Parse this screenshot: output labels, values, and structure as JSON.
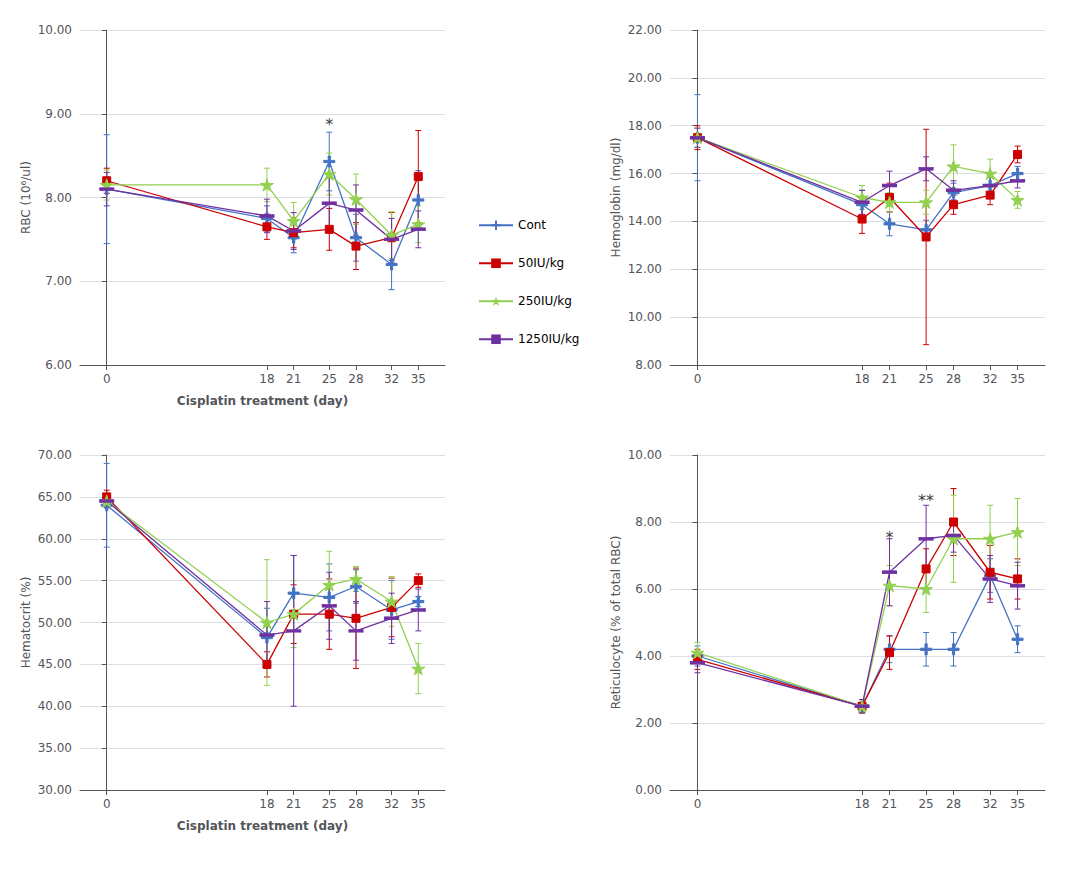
{
  "chart_data": [
    {
      "type": "line",
      "xlabel": "Cisplatin treatment (day)",
      "ylabel": "RBC (10⁶/ul)",
      "x": [
        0,
        18,
        21,
        25,
        28,
        32,
        35
      ],
      "xlim": [
        -3,
        38
      ],
      "xticks": [
        0,
        18,
        21,
        25,
        28,
        32,
        35
      ],
      "ylim": [
        6.0,
        10.0
      ],
      "yticks": [
        {
          "value": 6.0,
          "label": "6.00"
        },
        {
          "value": 7.0,
          "label": "7.00"
        },
        {
          "value": 8.0,
          "label": "8.00"
        },
        {
          "value": 9.0,
          "label": "9.00"
        },
        {
          "value": 10.0,
          "label": "10.00"
        }
      ],
      "grid": true,
      "legend": "right",
      "series": [
        {
          "name": "Cont",
          "color": "#4472C4",
          "marker": "plus",
          "values": [
            8.1,
            7.75,
            7.52,
            8.43,
            7.52,
            7.2,
            7.97
          ],
          "errors": [
            0.65,
            0.15,
            0.18,
            0.35,
            0.28,
            0.3,
            0.35
          ]
        },
        {
          "name": "50IU/kg",
          "color": "#CC0000",
          "marker": "square",
          "values": [
            8.2,
            7.65,
            7.58,
            7.62,
            7.42,
            7.52,
            8.25
          ],
          "errors": [
            0.15,
            0.15,
            0.18,
            0.25,
            0.28,
            0.3,
            0.55
          ]
        },
        {
          "name": "250IU/kg",
          "color": "#92D050",
          "marker": "star",
          "values": [
            8.15,
            8.15,
            7.72,
            8.28,
            7.98,
            7.55,
            7.68
          ],
          "errors": [
            0.18,
            0.2,
            0.22,
            0.25,
            0.3,
            0.28,
            0.22
          ]
        },
        {
          "name": "1250IU/kg",
          "color": "#7030A0",
          "marker": "hline",
          "values": [
            8.1,
            7.78,
            7.6,
            7.93,
            7.85,
            7.5,
            7.62
          ],
          "errors": [
            0.2,
            0.2,
            0.22,
            0.32,
            0.3,
            0.25,
            0.22
          ]
        }
      ],
      "annotations": [
        {
          "text": "*",
          "x": 25,
          "y": 8.78
        }
      ]
    },
    {
      "type": "line",
      "ylabel": "Hemoglobin (mg/dl)",
      "x": [
        0,
        18,
        21,
        25,
        28,
        32,
        35
      ],
      "xlim": [
        -3,
        38
      ],
      "xticks": [
        0,
        18,
        21,
        25,
        28,
        32,
        35
      ],
      "ylim": [
        8.0,
        22.0
      ],
      "yticks": [
        {
          "value": 8.0,
          "label": "8.00"
        },
        {
          "value": 10.0,
          "label": "10.00"
        },
        {
          "value": 12.0,
          "label": "12.00"
        },
        {
          "value": 14.0,
          "label": "14.00"
        },
        {
          "value": 16.0,
          "label": "16.00"
        },
        {
          "value": 18.0,
          "label": "18.00"
        },
        {
          "value": 20.0,
          "label": "20.00"
        },
        {
          "value": 22.0,
          "label": "22.00"
        }
      ],
      "grid": true,
      "series": [
        {
          "name": "Cont",
          "color": "#4472C4",
          "marker": "plus",
          "values": [
            17.5,
            14.7,
            13.9,
            13.65,
            15.2,
            15.5,
            16.0
          ],
          "errors": [
            1.8,
            0.6,
            0.5,
            0.4,
            0.4,
            0.5,
            0.3
          ]
        },
        {
          "name": "50IU/kg",
          "color": "#CC0000",
          "marker": "square",
          "values": [
            17.5,
            14.1,
            15.0,
            13.35,
            14.7,
            15.1,
            16.8
          ],
          "errors": [
            0.5,
            0.6,
            0.6,
            4.5,
            0.4,
            0.4,
            0.35
          ]
        },
        {
          "name": "250IU/kg",
          "color": "#92D050",
          "marker": "star",
          "values": [
            17.5,
            15.0,
            14.8,
            14.8,
            16.3,
            16.0,
            14.9
          ],
          "errors": [
            0.4,
            0.5,
            0.4,
            0.5,
            0.9,
            0.6,
            0.35
          ]
        },
        {
          "name": "1250IU/kg",
          "color": "#7030A0",
          "marker": "hline",
          "values": [
            17.5,
            14.8,
            15.5,
            16.2,
            15.3,
            15.5,
            15.7
          ],
          "errors": [
            0.4,
            0.5,
            0.6,
            0.5,
            0.4,
            0.5,
            0.3
          ]
        }
      ]
    },
    {
      "type": "line",
      "xlabel": "Cisplatin treatment (day)",
      "ylabel": "Hematocrit (%)",
      "x": [
        0,
        18,
        21,
        25,
        28,
        32,
        35
      ],
      "xlim": [
        -3,
        38
      ],
      "xticks": [
        0,
        18,
        21,
        25,
        28,
        32,
        35
      ],
      "ylim": [
        30.0,
        70.0
      ],
      "yticks": [
        {
          "value": 30.0,
          "label": "30.00"
        },
        {
          "value": 35.0,
          "label": "35.00"
        },
        {
          "value": 40.0,
          "label": "40.00"
        },
        {
          "value": 45.0,
          "label": "45.00"
        },
        {
          "value": 50.0,
          "label": "50.00"
        },
        {
          "value": 55.0,
          "label": "55.00"
        },
        {
          "value": 60.0,
          "label": "60.00"
        },
        {
          "value": 65.0,
          "label": "65.00"
        },
        {
          "value": 70.0,
          "label": "70.00"
        }
      ],
      "grid": true,
      "series": [
        {
          "name": "Cont",
          "color": "#4472C4",
          "marker": "plus",
          "values": [
            64.0,
            48.2,
            53.5,
            53.0,
            54.3,
            51.5,
            52.5
          ],
          "errors": [
            5.0,
            3.5,
            4.5,
            4.0,
            2.0,
            3.5,
            0.6
          ]
        },
        {
          "name": "50IU/kg",
          "color": "#CC0000",
          "marker": "square",
          "values": [
            65.0,
            45.0,
            51.0,
            51.0,
            50.5,
            51.8,
            55.0
          ],
          "errors": [
            0.8,
            1.5,
            3.5,
            4.2,
            6.0,
            3.5,
            0.8
          ]
        },
        {
          "name": "250IU/kg",
          "color": "#92D050",
          "marker": "star",
          "values": [
            64.5,
            50.0,
            51.0,
            54.5,
            55.2,
            52.5,
            44.5
          ],
          "errors": [
            0.8,
            7.5,
            4.0,
            4.0,
            1.5,
            3.0,
            3.0
          ]
        },
        {
          "name": "1250IU/kg",
          "color": "#7030A0",
          "marker": "hline",
          "values": [
            64.5,
            48.5,
            49.0,
            52.0,
            49.0,
            50.5,
            51.5
          ],
          "errors": [
            0.8,
            4.0,
            9.0,
            4.0,
            3.5,
            3.0,
            2.5
          ]
        }
      ]
    },
    {
      "type": "line",
      "ylabel": "Reticulocyte (% of total RBC)",
      "x": [
        0,
        18,
        21,
        25,
        28,
        32,
        35
      ],
      "xlim": [
        -3,
        38
      ],
      "xticks": [
        0,
        18,
        21,
        25,
        28,
        32,
        35
      ],
      "ylim": [
        0.0,
        10.0
      ],
      "yticks": [
        {
          "value": 0.0,
          "label": "0.00"
        },
        {
          "value": 2.0,
          "label": "2.00"
        },
        {
          "value": 4.0,
          "label": "4.00"
        },
        {
          "value": 6.0,
          "label": "6.00"
        },
        {
          "value": 8.0,
          "label": "8.00"
        },
        {
          "value": 10.0,
          "label": "10.00"
        }
      ],
      "grid": true,
      "series": [
        {
          "name": "Cont",
          "color": "#4472C4",
          "marker": "plus",
          "values": [
            4.0,
            2.5,
            4.2,
            4.2,
            4.2,
            6.4,
            4.5
          ],
          "errors": [
            0.3,
            0.2,
            0.4,
            0.5,
            0.5,
            0.5,
            0.4
          ]
        },
        {
          "name": "50IU/kg",
          "color": "#CC0000",
          "marker": "square",
          "values": [
            3.9,
            2.5,
            4.1,
            6.6,
            8.0,
            6.5,
            6.3
          ],
          "errors": [
            0.3,
            0.2,
            0.5,
            0.6,
            1.0,
            0.8,
            0.6
          ]
        },
        {
          "name": "250IU/kg",
          "color": "#92D050",
          "marker": "star",
          "values": [
            4.1,
            2.5,
            6.1,
            6.0,
            7.5,
            7.5,
            7.7
          ],
          "errors": [
            0.3,
            0.2,
            0.6,
            0.7,
            1.3,
            1.0,
            1.0
          ]
        },
        {
          "name": "1250IU/kg",
          "color": "#7030A0",
          "marker": "hline",
          "values": [
            3.8,
            2.5,
            6.5,
            7.5,
            7.6,
            6.3,
            6.1
          ],
          "errors": [
            0.3,
            0.2,
            1.0,
            1.0,
            0.5,
            0.7,
            0.7
          ]
        }
      ],
      "annotations": [
        {
          "text": "*",
          "x": 21,
          "y": 7.3
        },
        {
          "text": "**",
          "x": 25,
          "y": 8.4
        }
      ]
    }
  ]
}
